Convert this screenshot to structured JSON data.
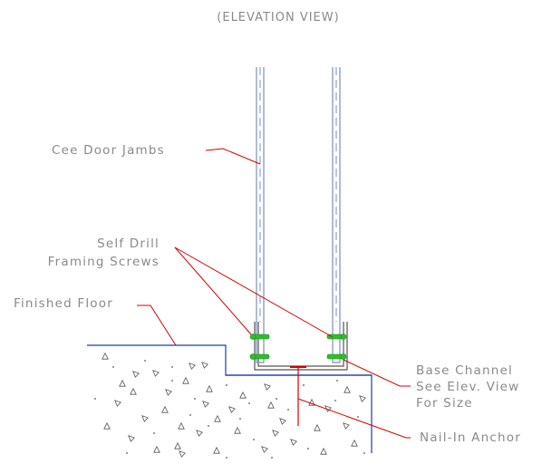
{
  "title": "(ELEVATION VIEW)",
  "labels": {
    "cee_door_jambs": "Cee Door Jambs",
    "self_drill_line1": "Self Drill",
    "self_drill_line2": "Framing Screws",
    "finished_floor": "Finished Floor",
    "base_channel_line1": "Base Channel",
    "base_channel_line2": "See Elev. View",
    "base_channel_line3": "For Size",
    "nail_in_anchor": "Nail-In Anchor"
  },
  "colors": {
    "leader": "#d40000",
    "floor_line": "#1a3fa8",
    "jamb": "#7c8fb8",
    "screw": "#2bbf2b",
    "text": "#8a8a8a",
    "concrete_speck": "#555555"
  }
}
